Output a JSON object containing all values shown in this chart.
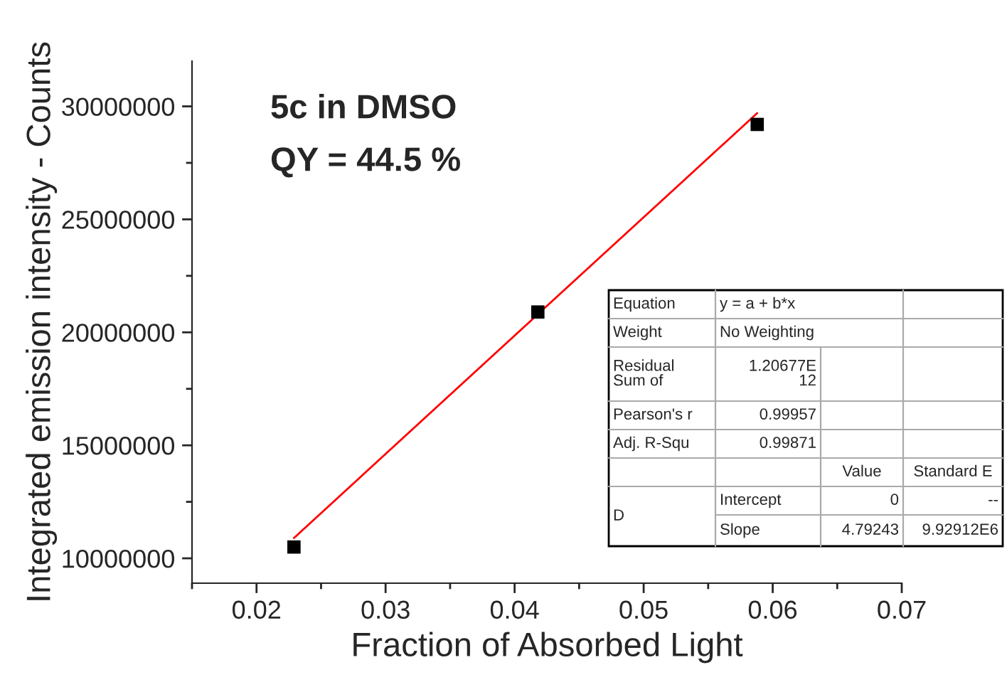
{
  "chart_data": {
    "type": "scatter",
    "xlabel": "Fraction of Absorbed Light",
    "ylabel": "Integrated emission intensity - Counts",
    "series": [
      {
        "color": "#000000",
        "marker": "square",
        "x": [
          0.0229,
          0.0418,
          0.0588
        ],
        "values": [
          10500000,
          20900000,
          29200000
        ]
      },
      {
        "type": "line",
        "color": "#ff0000",
        "line_style": "solid",
        "marker": "none",
        "x": [
          0.0229,
          0.0588
        ],
        "values": [
          10900000,
          29700000
        ]
      }
    ],
    "xlim": [
      0.015,
      0.07
    ],
    "xticks": [
      0.02,
      0.03,
      0.04,
      0.05,
      0.06,
      0.07
    ],
    "ylim": [
      8900000,
      32000000
    ],
    "yticks": [
      10000000,
      15000000,
      20000000,
      25000000,
      30000000
    ],
    "grid": false,
    "legend": false,
    "annotations": [
      "5c in DMSO",
      "QY = 44.5 %",
      "Equation",
      "y = a + b*x",
      "Weight",
      "No Weighting",
      "Residual\nSum of",
      "1.20677E\n12",
      "Pearson's r",
      "0.99957",
      "Adj. R-Squ",
      "0.99871",
      "Value",
      "Standard E",
      "D",
      "Intercept",
      "0",
      "--",
      "Slope",
      "4.79243",
      "9.92912E6"
    ]
  }
}
